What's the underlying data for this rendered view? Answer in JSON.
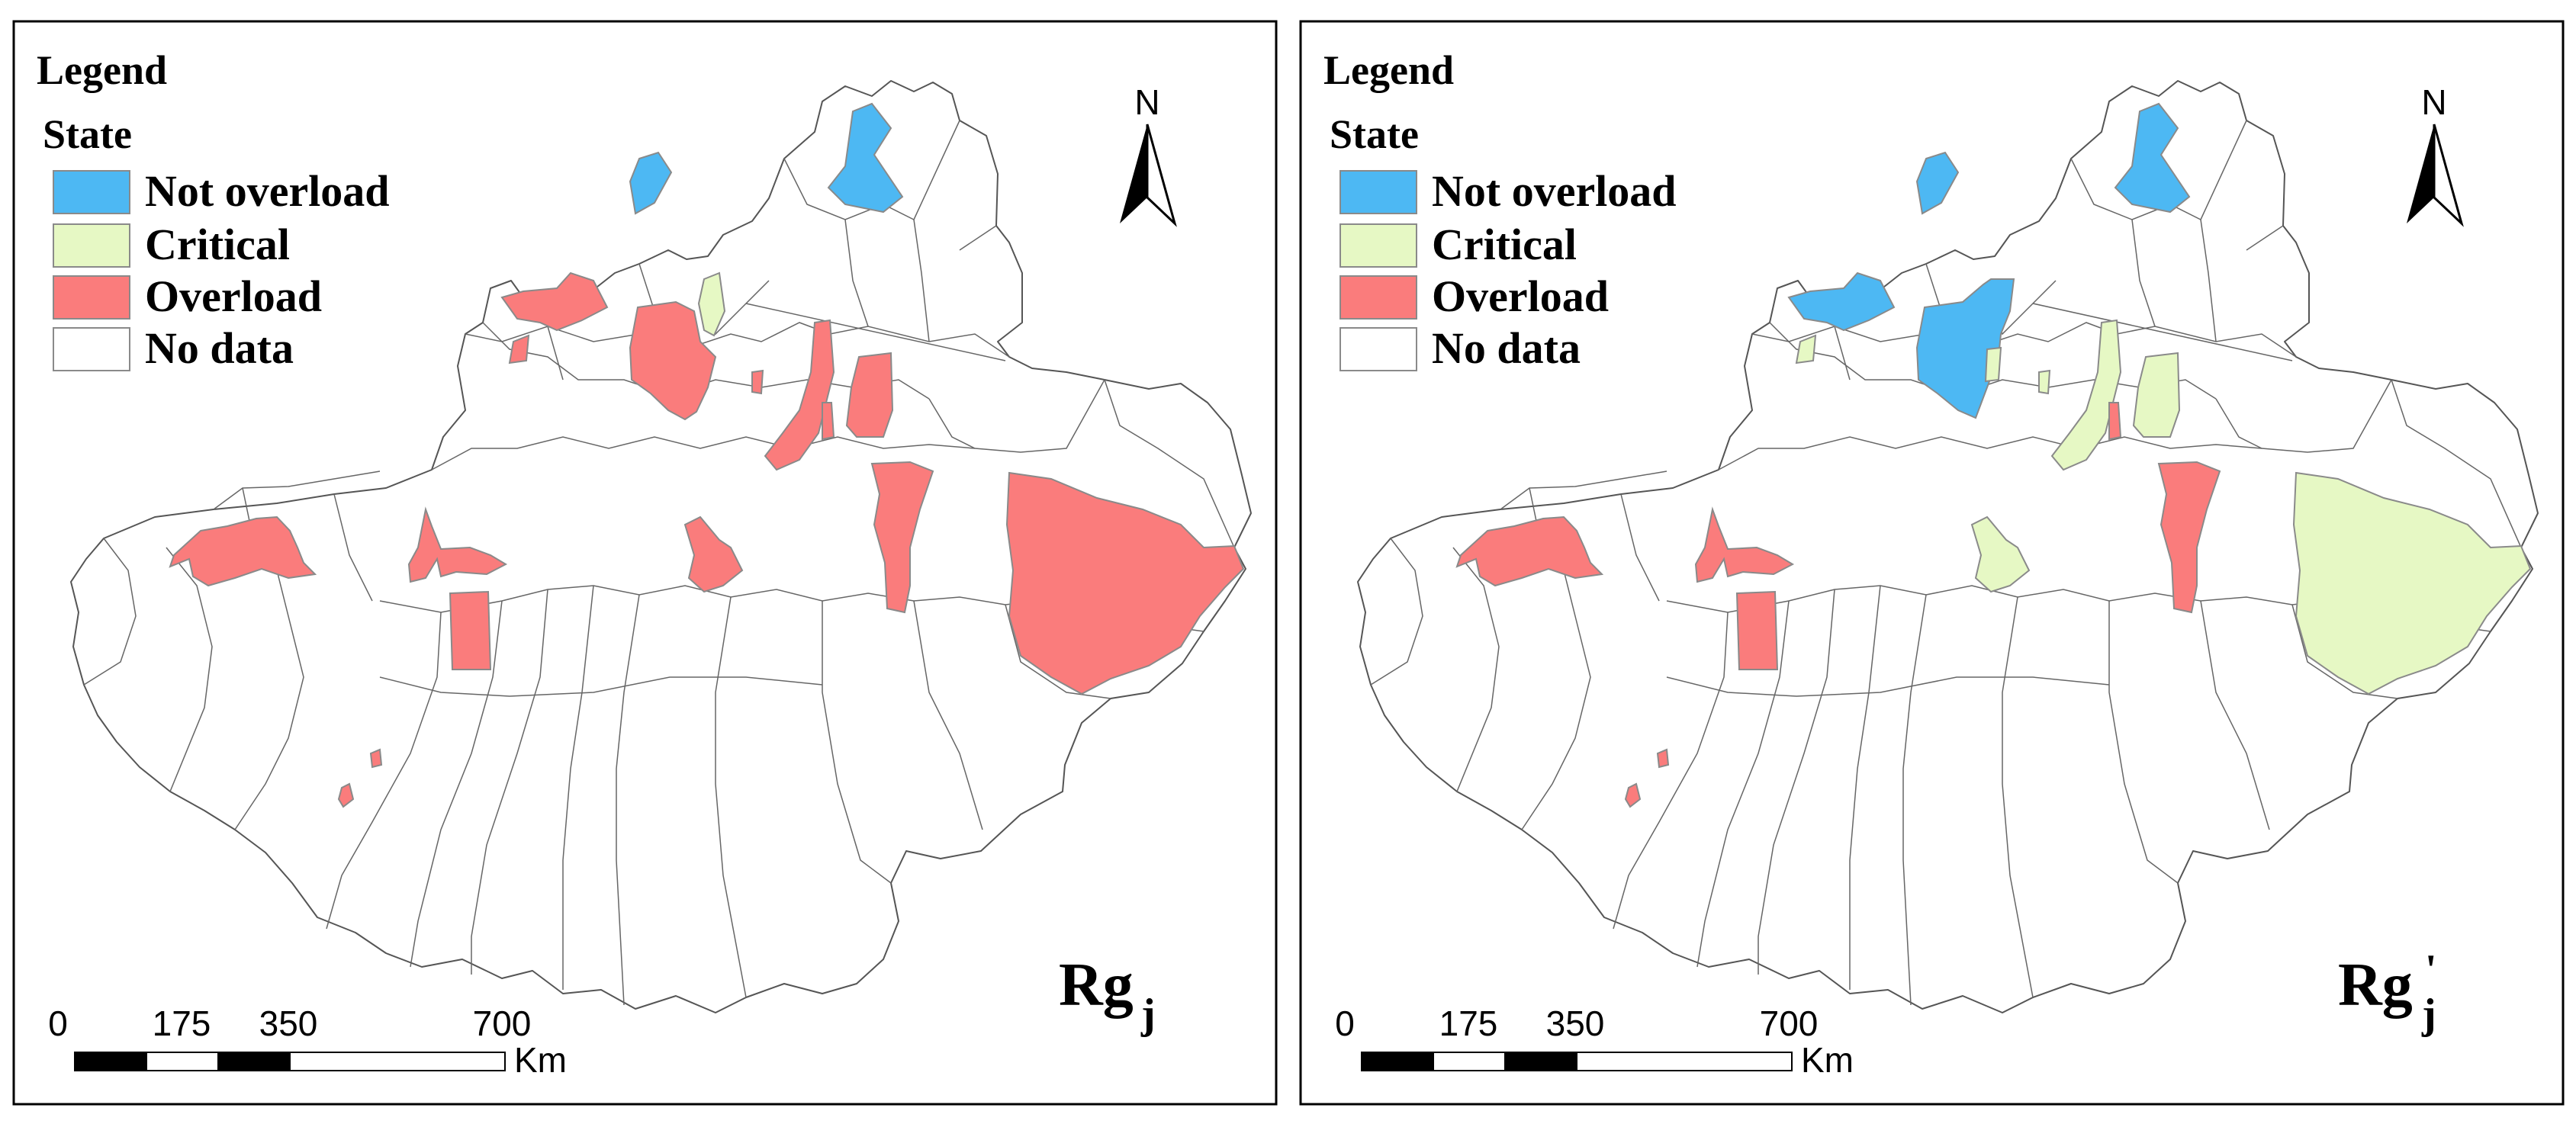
{
  "legend": {
    "title": "Legend",
    "subtitle": "State",
    "items": [
      {
        "label": "Not overload",
        "color": "#4db8f3"
      },
      {
        "label": "Critical",
        "color": "#e6f8c4"
      },
      {
        "label": "Overload",
        "color": "#fa7c7c"
      },
      {
        "label": "No data",
        "color": "#ffffff"
      }
    ]
  },
  "north_arrow": {
    "label": "N"
  },
  "scale_bar": {
    "ticks": [
      "0",
      "175",
      "350",
      "700"
    ],
    "unit": "Km"
  },
  "panels": [
    {
      "id": "left",
      "label_main": "Rg",
      "label_sub": "j"
    },
    {
      "id": "right",
      "label_main": "Rg",
      "label_sub": "j",
      "label_prime": "'"
    }
  ],
  "colors": {
    "not_overload": "#4db8f3",
    "critical": "#e6f8c4",
    "overload": "#fa7c7c",
    "no_data": "#ffffff",
    "frame": "#000000",
    "boundary": "#666666"
  }
}
